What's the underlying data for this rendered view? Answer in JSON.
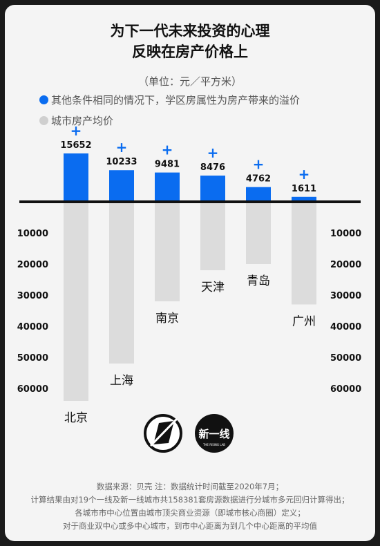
{
  "title_line1": "为下一代未来投资的心理",
  "title_line2": "反映在房产价格上",
  "unit": "（单位：元／平方米）",
  "legend": {
    "premium": "其他条件相同的情况下，学区房属性为房产带来的溢价",
    "average": "城市房产均价"
  },
  "logo_text": "新一线",
  "logo_subtext": "THE RISING LAB",
  "source_lines": [
    "数据来源：贝壳  注：数据统计时间截至2020年7月；",
    "计算结果由对19个一线及新一线城市共158381套房源数据进行分城市多元回归计算得出；",
    "各城市市中心位置由城市顶尖商业资源（即城市核心商圈）定义；",
    "对于商业双中心或多中心城市，到市中心距离为到几个中心距离的平均值"
  ],
  "chart_data": {
    "type": "bar",
    "categories": [
      "北京",
      "上海",
      "南京",
      "天津",
      "青岛",
      "广州"
    ],
    "series": [
      {
        "name": "其他条件相同的情况下，学区房属性为房产带来的溢价",
        "values": [
          15652,
          10233,
          9481,
          8476,
          4762,
          1611
        ],
        "color": "#0a6cf0"
      },
      {
        "name": "城市房产均价",
        "values": [
          64000,
          52000,
          32000,
          22000,
          20000,
          33000
        ],
        "color": "#dcdcdc"
      }
    ],
    "premium_prefix": "+",
    "yticks": [
      "10000",
      "20000",
      "30000",
      "40000",
      "50000",
      "60000"
    ],
    "ytick_values": [
      10000,
      20000,
      30000,
      40000,
      50000,
      60000
    ]
  }
}
